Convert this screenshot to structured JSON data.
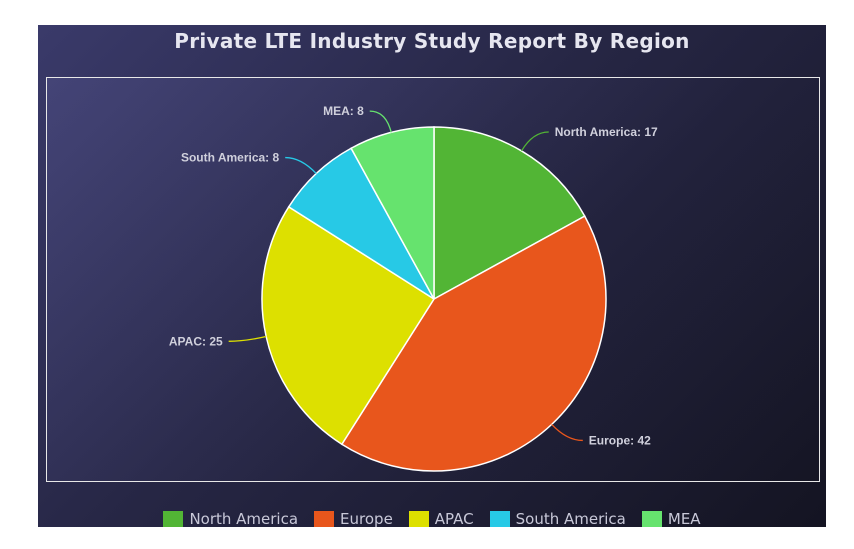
{
  "chart_data": {
    "type": "pie",
    "title": "Private LTE Industry Study Report By Region",
    "categories": [
      "North America",
      "Europe",
      "APAC",
      "South America",
      "MEA"
    ],
    "values": [
      17,
      42,
      25,
      8,
      8
    ],
    "colors": [
      "#52b535",
      "#e8561c",
      "#dde000",
      "#27c9e6",
      "#66e36e"
    ],
    "labels": [
      "North America: 17",
      "Europe: 42",
      "APAC: 25",
      "South America: 8",
      "MEA: 8"
    ],
    "legend_position": "bottom"
  }
}
